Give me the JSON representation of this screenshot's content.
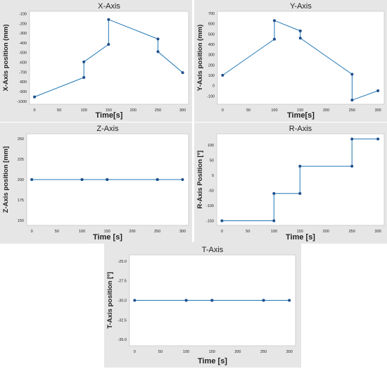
{
  "chart_data": [
    {
      "type": "line",
      "title": "X-Axis",
      "xlabel": "Time[s]",
      "ylabel": "X-Axis position (mm)",
      "xlim": [
        -10,
        312
      ],
      "ylim": [
        -1030,
        -75
      ],
      "xticks": [
        0,
        50,
        100,
        150,
        200,
        250,
        300
      ],
      "yticks": [
        -100,
        -200,
        -300,
        -400,
        -500,
        -600,
        -700,
        -800,
        -900,
        -1000
      ],
      "grid": false,
      "series": [
        {
          "x": [
            0,
            100,
            100,
            150,
            150,
            250,
            250,
            300
          ],
          "y": [
            -955,
            -755,
            -595,
            -415,
            -160,
            -360,
            -490,
            -705
          ]
        }
      ]
    },
    {
      "type": "line",
      "title": "Y-Axis",
      "xlabel": "Time[s]",
      "ylabel": "Y-Axis position (mm)",
      "xlim": [
        -10,
        312
      ],
      "ylim": [
        -180,
        720
      ],
      "xticks": [
        0,
        50,
        100,
        150,
        200,
        250,
        300
      ],
      "yticks": [
        -100,
        0,
        100,
        200,
        300,
        400,
        500,
        600,
        700
      ],
      "grid": false,
      "series": [
        {
          "x": [
            0,
            100,
            100,
            150,
            150,
            250,
            250,
            300
          ],
          "y": [
            100,
            450,
            630,
            530,
            460,
            110,
            -140,
            -50
          ]
        }
      ]
    },
    {
      "type": "line",
      "title": "Z-Axis",
      "xlabel": "Time [s]",
      "ylabel": "Z-Axis position [mm]",
      "xlim": [
        -10,
        312
      ],
      "ylim": [
        144,
        256
      ],
      "xticks": [
        0,
        50,
        100,
        150,
        200,
        250,
        300
      ],
      "yticks": [
        150,
        175,
        200,
        225,
        250
      ],
      "grid": false,
      "series": [
        {
          "x": [
            0,
            100,
            100,
            150,
            150,
            250,
            250,
            300
          ],
          "y": [
            200,
            200,
            200,
            200,
            200,
            200,
            200,
            200
          ]
        }
      ]
    },
    {
      "type": "line",
      "title": "R-Axis",
      "xlabel": "Time [s]",
      "ylabel": "R-Axis Position [º]",
      "xlim": [
        -10,
        312
      ],
      "ylim": [
        -165,
        137
      ],
      "xticks": [
        0,
        50,
        100,
        150,
        200,
        250,
        300
      ],
      "yticks": [
        -150,
        -100,
        -50,
        0,
        50,
        100
      ],
      "grid": false,
      "series": [
        {
          "x": [
            0,
            100,
            100,
            150,
            150,
            250,
            250,
            300
          ],
          "y": [
            -150,
            -150,
            -60,
            -60,
            30,
            30,
            120,
            120
          ]
        }
      ]
    },
    {
      "type": "line",
      "title": "T-Axis",
      "xlabel": "Time [s]",
      "ylabel": "T-Axis position [º]",
      "xlim": [
        -10,
        312
      ],
      "ylim": [
        -35.8,
        -24.2
      ],
      "xticks": [
        0,
        50,
        100,
        150,
        200,
        250,
        300
      ],
      "yticks": [
        -25.0,
        -27.5,
        -30.0,
        -32.5,
        -35.0
      ],
      "ytick_labels": [
        "-25.0",
        "-27.5",
        "-30.0",
        "-32.5",
        "-35.0"
      ],
      "grid": false,
      "series": [
        {
          "x": [
            0,
            100,
            100,
            150,
            150,
            250,
            250,
            300
          ],
          "y": [
            -30,
            -30,
            -30,
            -30,
            -30,
            -30,
            -30,
            -30
          ]
        }
      ]
    }
  ],
  "colors": {
    "panel_bg": "#e6e6e6",
    "plot_bg": "#ffffff",
    "line": "#1f77b4",
    "marker": "#1f4e8c",
    "text": "#222222"
  }
}
